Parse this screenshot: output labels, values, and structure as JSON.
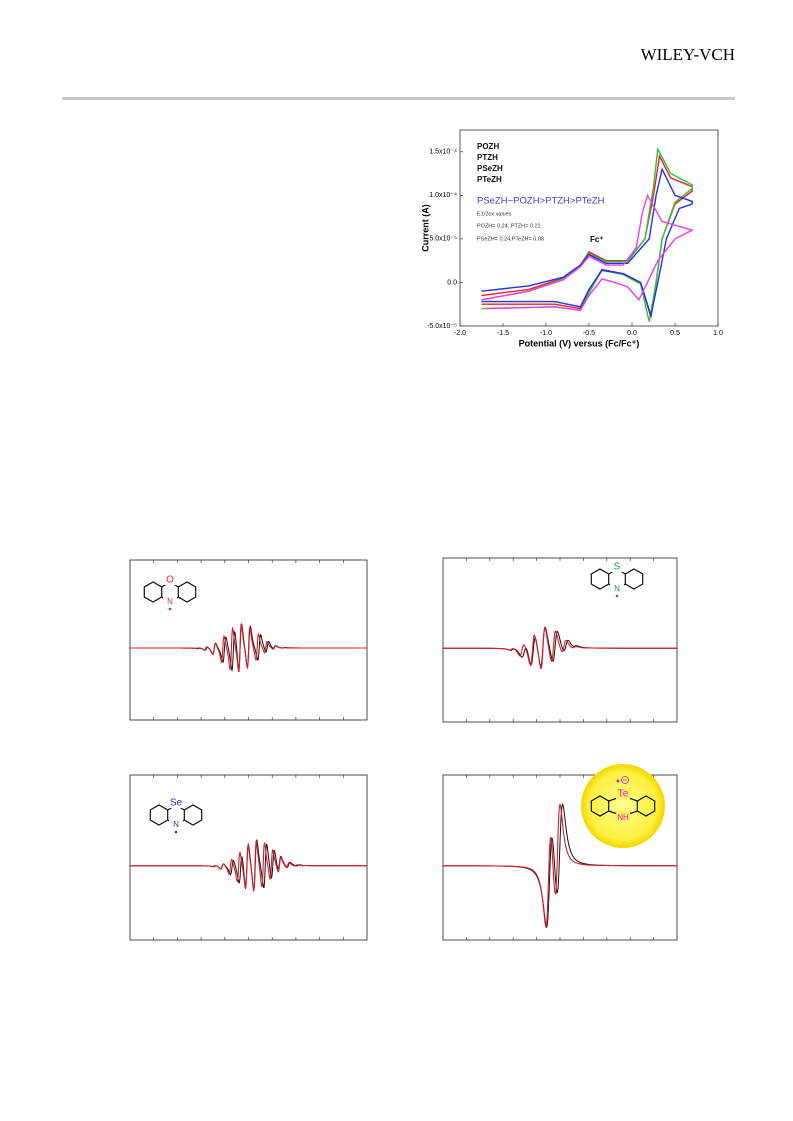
{
  "header": {
    "publisher": "WILEY-VCH"
  },
  "chart_data": {
    "type": "line",
    "ylabel": "Current (A)",
    "xlabel": "Potential (V) versus (Fc/Fc⁺)",
    "xlim": [
      -2.0,
      1.0
    ],
    "xticks": [
      {
        "value": -2.0,
        "label": "-2.0"
      },
      -1.5,
      {
        "value": -1.0,
        "label": "-1.0"
      },
      -0.5,
      {
        "value": 0.0,
        "label": "0.0"
      },
      0.5,
      {
        "value": 1.0,
        "label": "1.0"
      }
    ],
    "ylim": [
      -5e-05,
      0.000175
    ],
    "yticks": [
      {
        "value": -5e-05,
        "label": "-5.0x10⁻⁵"
      },
      {
        "value": 0.0,
        "label": "0.0"
      },
      {
        "value": 5e-05,
        "label": "5.0x10⁻⁵"
      },
      {
        "value": 0.0001,
        "label": "1.0x10⁻⁴"
      },
      {
        "value": 0.00015,
        "label": "1.5x10⁻⁴"
      }
    ],
    "series": [
      {
        "name": "POZH",
        "color": "#e8232a",
        "x": [
          -1.75,
          -1.2,
          -0.8,
          -0.6,
          -0.5,
          -0.3,
          -0.05,
          0.15,
          0.25,
          0.32,
          0.45,
          0.7,
          0.7,
          0.5,
          0.35,
          0.28,
          0.22,
          0.1,
          -0.1,
          -0.35,
          -0.5,
          -0.6,
          -0.9,
          -1.75
        ],
        "values": [
          -1.5e-05,
          -8e-06,
          5e-06,
          2e-05,
          3.5e-05,
          2.5e-05,
          2.5e-05,
          5e-05,
          0.0001,
          0.000145,
          0.00012,
          0.00011,
          0.000105,
          9e-05,
          5e-05,
          0.0,
          -4e-05,
          0.0,
          1e-05,
          1.5e-05,
          -1e-05,
          -3e-05,
          -2.5e-05,
          -2.5e-05
        ]
      },
      {
        "name": "PTZH",
        "color": "#2fc43a",
        "x": [
          -1.75,
          -1.2,
          -0.8,
          -0.6,
          -0.5,
          -0.3,
          -0.05,
          0.15,
          0.25,
          0.3,
          0.45,
          0.7,
          0.7,
          0.5,
          0.35,
          0.28,
          0.2,
          0.1,
          -0.1,
          -0.35,
          -0.5,
          -0.6,
          -0.9,
          -1.75
        ],
        "values": [
          -2e-05,
          -1e-05,
          4e-06,
          2e-05,
          3.3e-05,
          2.4e-05,
          2.4e-05,
          5e-05,
          0.00011,
          0.000153,
          0.000125,
          0.000112,
          0.000108,
          9.2e-05,
          5e-05,
          0.0,
          -4.5e-05,
          -2e-06,
          9e-06,
          1.4e-05,
          -1.2e-05,
          -3.2e-05,
          -2.8e-05,
          -3e-05
        ]
      },
      {
        "name": "PSeZH",
        "color": "#2233e0",
        "x": [
          -1.75,
          -1.2,
          -0.8,
          -0.6,
          -0.5,
          -0.3,
          -0.05,
          0.2,
          0.28,
          0.35,
          0.5,
          0.7,
          0.7,
          0.55,
          0.4,
          0.3,
          0.22,
          0.1,
          -0.1,
          -0.35,
          -0.5,
          -0.6,
          -0.9,
          -1.75
        ],
        "values": [
          -1e-05,
          -4e-06,
          6e-06,
          2e-05,
          3.2e-05,
          2.2e-05,
          2.2e-05,
          5e-05,
          0.0001,
          0.00013,
          0.0001,
          9.3e-05,
          9e-05,
          8.5e-05,
          5e-05,
          0.0,
          -3.8e-05,
          0.0,
          1e-05,
          1.4e-05,
          -8e-06,
          -2.8e-05,
          -2.2e-05,
          -2.2e-05
        ]
      },
      {
        "name": "PTeZH",
        "color": "#f03ce8",
        "x": [
          -1.75,
          -1.2,
          -0.8,
          -0.6,
          -0.5,
          -0.3,
          -0.1,
          0.05,
          0.12,
          0.18,
          0.35,
          0.7,
          0.7,
          0.5,
          0.3,
          0.18,
          0.08,
          -0.05,
          -0.2,
          -0.35,
          -0.5,
          -0.6,
          -0.9,
          -1.7
        ],
        "values": [
          -2e-05,
          -1e-05,
          3e-06,
          1.8e-05,
          3e-05,
          2e-05,
          2e-05,
          4e-05,
          8e-05,
          0.0001,
          7e-05,
          6e-05,
          6e-05,
          5e-05,
          2.5e-05,
          0.0,
          -2e-05,
          -5e-06,
          0.0,
          4e-06,
          -1.5e-05,
          -3.2e-05,
          -2.8e-05,
          -3e-05
        ]
      }
    ],
    "annotations": {
      "order": "PSeZH~POZH>PTZH>PTeZH",
      "e_half": "E1/2ox values",
      "values_1": "POZH= 0.24, PTZH= 0.22",
      "values_2": "PSeZH= 0.24,PTeZH= 0.08",
      "fc": "Fc⁺"
    }
  },
  "epr_spectra": [
    {
      "atoms": [
        "O",
        "N"
      ]
    },
    {
      "atoms": [
        "S",
        "N"
      ]
    },
    {
      "atoms": [
        "Se",
        "N"
      ]
    },
    {
      "atoms": [
        "Te",
        "NH"
      ]
    }
  ]
}
